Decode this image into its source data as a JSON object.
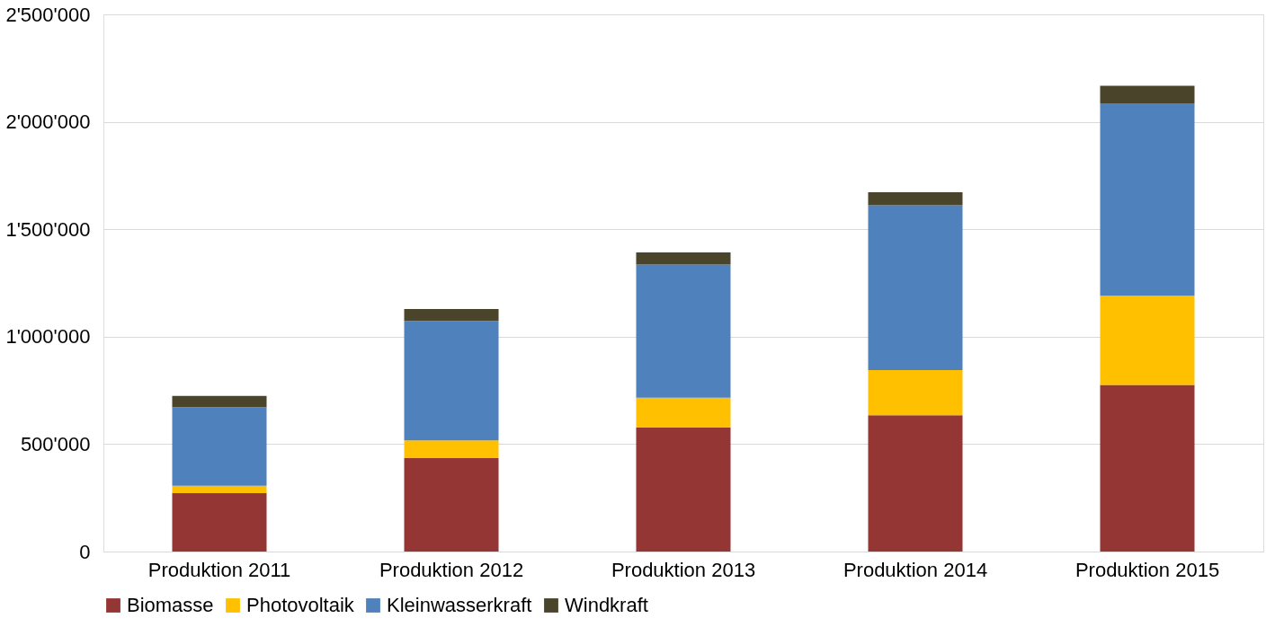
{
  "chart_data": {
    "type": "bar",
    "stacked": true,
    "categories": [
      "Produktion 2011",
      "Produktion 2012",
      "Produktion 2013",
      "Produktion 2014",
      "Produktion 2015"
    ],
    "series": [
      {
        "name": "Biomasse",
        "color": "#943634",
        "values": [
          272000,
          435000,
          578000,
          634000,
          776000
        ]
      },
      {
        "name": "Photovoltaik",
        "color": "#ffc000",
        "values": [
          34000,
          82000,
          138000,
          211000,
          414000
        ]
      },
      {
        "name": "Kleinwasserkraft",
        "color": "#4f81bd",
        "values": [
          366000,
          556000,
          620000,
          767000,
          896000
        ]
      },
      {
        "name": "Windkraft",
        "color": "#4a452a",
        "values": [
          52000,
          56000,
          56000,
          60000,
          82000
        ]
      }
    ],
    "ylim": [
      0,
      2500000
    ],
    "yticks": [
      {
        "value": 0,
        "label": "0"
      },
      {
        "value": 500000,
        "label": "500'000"
      },
      {
        "value": 1000000,
        "label": "1'000'000"
      },
      {
        "value": 1500000,
        "label": "1'500'000"
      },
      {
        "value": 2000000,
        "label": "2'000'000"
      },
      {
        "value": 2500000,
        "label": "2'500'000"
      }
    ],
    "grid": "y",
    "legend": "bottom"
  }
}
